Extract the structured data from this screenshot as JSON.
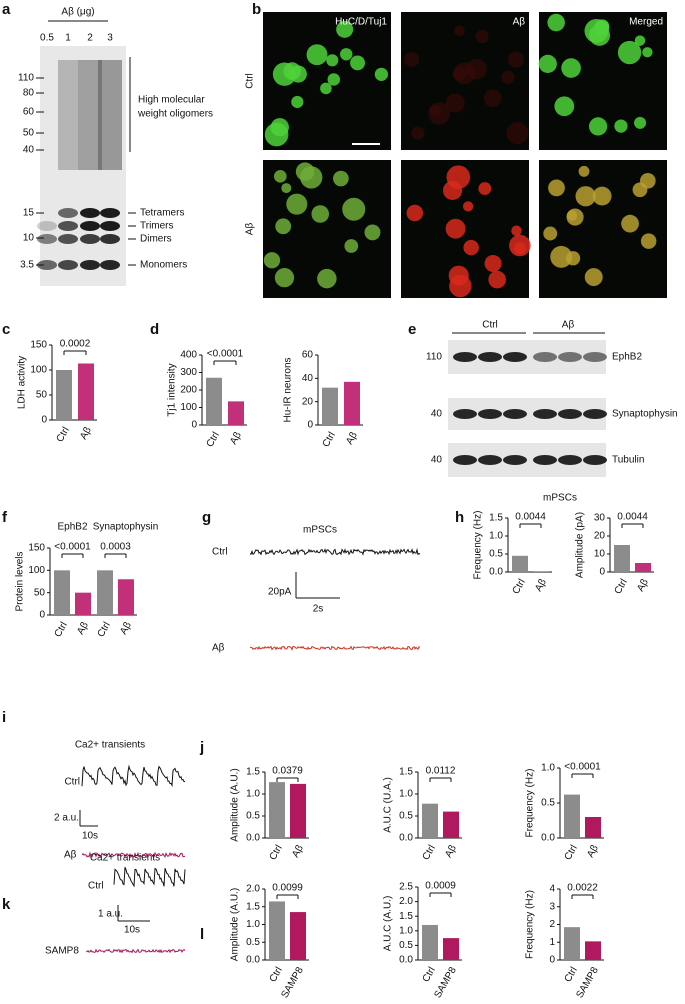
{
  "figure": {
    "panel_labels": [
      "a",
      "b",
      "c",
      "d",
      "e",
      "f",
      "g",
      "h",
      "i",
      "j",
      "k",
      "l"
    ],
    "blot_a": {
      "header": "Aβ (μg)",
      "lanes": [
        0.5,
        1,
        2,
        3
      ],
      "markers": [
        110,
        80,
        60,
        50,
        40,
        15,
        10,
        3.5
      ],
      "bracket_label": [
        "High molecular",
        "weight oligomers"
      ],
      "species": [
        "Tetramers",
        "Trimers",
        "Dimers",
        "Monomers"
      ]
    },
    "images_b": {
      "columns": [
        "HuC/D/Tuj1",
        "Aβ",
        "Merged"
      ],
      "rows": [
        "Ctrl",
        "Aβ"
      ]
    },
    "blot_e": {
      "groups": [
        "Ctrl",
        "Aβ"
      ],
      "markers": [
        110,
        40,
        40
      ],
      "proteins": [
        "EphB2",
        "Synaptophysin",
        "Tubulin"
      ]
    },
    "trace_g": {
      "title": "mPSCs",
      "rows": [
        "Ctrl",
        "Aβ"
      ],
      "scale_y": "20pA",
      "scale_x": "2s"
    },
    "trace_i": {
      "title": "Ca2+ transients",
      "rows": [
        "Ctrl",
        "Aβ"
      ],
      "scale_y": "2 a.u.",
      "scale_x": "10s"
    },
    "trace_k": {
      "title": "Ca2+ transients",
      "rows": [
        "Ctrl",
        "SAMP8"
      ],
      "scale_y": "1 a.u.",
      "scale_x": "10s"
    }
  },
  "chart_data": [
    {
      "type": "bar",
      "ylabel": "LDH activity",
      "categories": [
        "Ctrl",
        "Aβ"
      ],
      "values": [
        100,
        113
      ],
      "colors": [
        "#8c8c8c",
        "#c2307a"
      ],
      "ylim": [
        0,
        150
      ],
      "yticks": [
        0,
        50,
        100,
        150
      ],
      "p_values": [
        "0.0002"
      ]
    },
    {
      "type": "bar",
      "ylabel": "Tj1 intensity",
      "categories": [
        "Ctrl",
        "Aβ"
      ],
      "values": [
        270,
        135
      ],
      "colors": [
        "#8c8c8c",
        "#c2307a"
      ],
      "ylim": [
        0,
        400
      ],
      "yticks": [
        0,
        100,
        200,
        300,
        400
      ],
      "p_values": [
        "<0.0001"
      ]
    },
    {
      "type": "bar",
      "ylabel": "Hu-IR neurons",
      "categories": [
        "Ctrl",
        "Aβ"
      ],
      "values": [
        32,
        37
      ],
      "colors": [
        "#8c8c8c",
        "#c2307a"
      ],
      "ylim": [
        0,
        60
      ],
      "yticks": [
        0,
        20,
        40,
        60
      ]
    },
    {
      "type": "bar",
      "ylabel": "Protein levels",
      "group_labels": [
        "EphB2",
        "Synaptophysin"
      ],
      "categories": [
        "Ctrl",
        "Aβ",
        "Ctrl",
        "Aβ"
      ],
      "values": [
        100,
        50,
        100,
        80
      ],
      "colors": [
        "#8c8c8c",
        "#c2307a",
        "#8c8c8c",
        "#c2307a"
      ],
      "ylim": [
        0,
        150
      ],
      "yticks": [
        0,
        50,
        100,
        150
      ],
      "p_values": [
        "<0.0001",
        "0.0003"
      ]
    },
    {
      "type": "bar",
      "title": "mPSCs",
      "ylabel": "Frequency (Hz)",
      "categories": [
        "Ctrl",
        "Aβ"
      ],
      "values": [
        0.45,
        0.01
      ],
      "colors": [
        "#8c8c8c",
        "#c2307a"
      ],
      "ylim": [
        0,
        1.5
      ],
      "yticks": [
        {
          "value": 0,
          "label": "0.0"
        },
        0.5,
        {
          "value": 1,
          "label": "1.0"
        },
        1.5
      ],
      "p_values": [
        "0.0044"
      ]
    },
    {
      "type": "bar",
      "ylabel": "Amplitude (pA)",
      "categories": [
        "Ctrl",
        "Aβ"
      ],
      "values": [
        15,
        5
      ],
      "colors": [
        "#8c8c8c",
        "#c2307a"
      ],
      "ylim": [
        0,
        30
      ],
      "yticks": [
        0,
        10,
        20,
        30
      ],
      "p_values": [
        "0.0044"
      ]
    },
    {
      "type": "bar",
      "ylabel": "Amplitude (A.U.)",
      "categories": [
        "Ctrl",
        "Aβ"
      ],
      "values": [
        1.27,
        1.23
      ],
      "colors": [
        "#8c8c8c",
        "#b0195e"
      ],
      "ylim": [
        0,
        1.5
      ],
      "yticks": [
        {
          "value": 0,
          "label": "0.0"
        },
        0.5,
        {
          "value": 1,
          "label": "1.0"
        },
        1.5
      ],
      "p_values": [
        "0.0379"
      ]
    },
    {
      "type": "bar",
      "ylabel": "A.U.C (U.A.)",
      "categories": [
        "Ctrl",
        "Aβ"
      ],
      "values": [
        0.78,
        0.6
      ],
      "colors": [
        "#8c8c8c",
        "#b0195e"
      ],
      "ylim": [
        0,
        1.5
      ],
      "yticks": [
        {
          "value": 0,
          "label": "0.0"
        },
        0.5,
        {
          "value": 1,
          "label": "1.0"
        },
        1.5
      ],
      "p_values": [
        "0.0112"
      ]
    },
    {
      "type": "bar",
      "ylabel": "Frequency (Hz)",
      "categories": [
        "Ctrl",
        "Aβ"
      ],
      "values": [
        0.62,
        0.3
      ],
      "colors": [
        "#8c8c8c",
        "#b0195e"
      ],
      "ylim": [
        0,
        1
      ],
      "yticks": [
        {
          "value": 0,
          "label": "0.0"
        },
        0.5,
        {
          "value": 1,
          "label": "1.0"
        }
      ],
      "p_values": [
        "<0.0001"
      ]
    },
    {
      "type": "bar",
      "ylabel": "Amplitude (A.U.)",
      "categories": [
        "Ctrl",
        "SAMP8"
      ],
      "values": [
        1.65,
        1.35
      ],
      "colors": [
        "#8c8c8c",
        "#b0195e"
      ],
      "ylim": [
        0,
        2
      ],
      "yticks": [
        {
          "value": 0,
          "label": "0.0"
        },
        0.5,
        {
          "value": 1,
          "label": "1.0"
        },
        1.5,
        {
          "value": 2,
          "label": "2.0"
        }
      ],
      "p_values": [
        "0.0099"
      ]
    },
    {
      "type": "bar",
      "ylabel": "A.U.C (A.U.)",
      "categories": [
        "Ctrl",
        "SAMP8"
      ],
      "values": [
        1.2,
        0.75
      ],
      "colors": [
        "#8c8c8c",
        "#b0195e"
      ],
      "ylim": [
        0,
        2.5
      ],
      "yticks": [
        {
          "value": 0,
          "label": "0.0"
        },
        0.5,
        {
          "value": 1,
          "label": "1.0"
        },
        1.5,
        {
          "value": 2,
          "label": "2.0"
        },
        2.5
      ],
      "p_values": [
        "0.0009"
      ]
    },
    {
      "type": "bar",
      "ylabel": "Frequency (Hz)",
      "categories": [
        "Ctrl",
        "SAMP8"
      ],
      "values": [
        1.85,
        1.05
      ],
      "colors": [
        "#8c8c8c",
        "#b0195e"
      ],
      "ylim": [
        0,
        4
      ],
      "yticks": [
        0,
        1,
        2,
        3,
        4
      ],
      "p_values": [
        "0.0022"
      ]
    }
  ]
}
